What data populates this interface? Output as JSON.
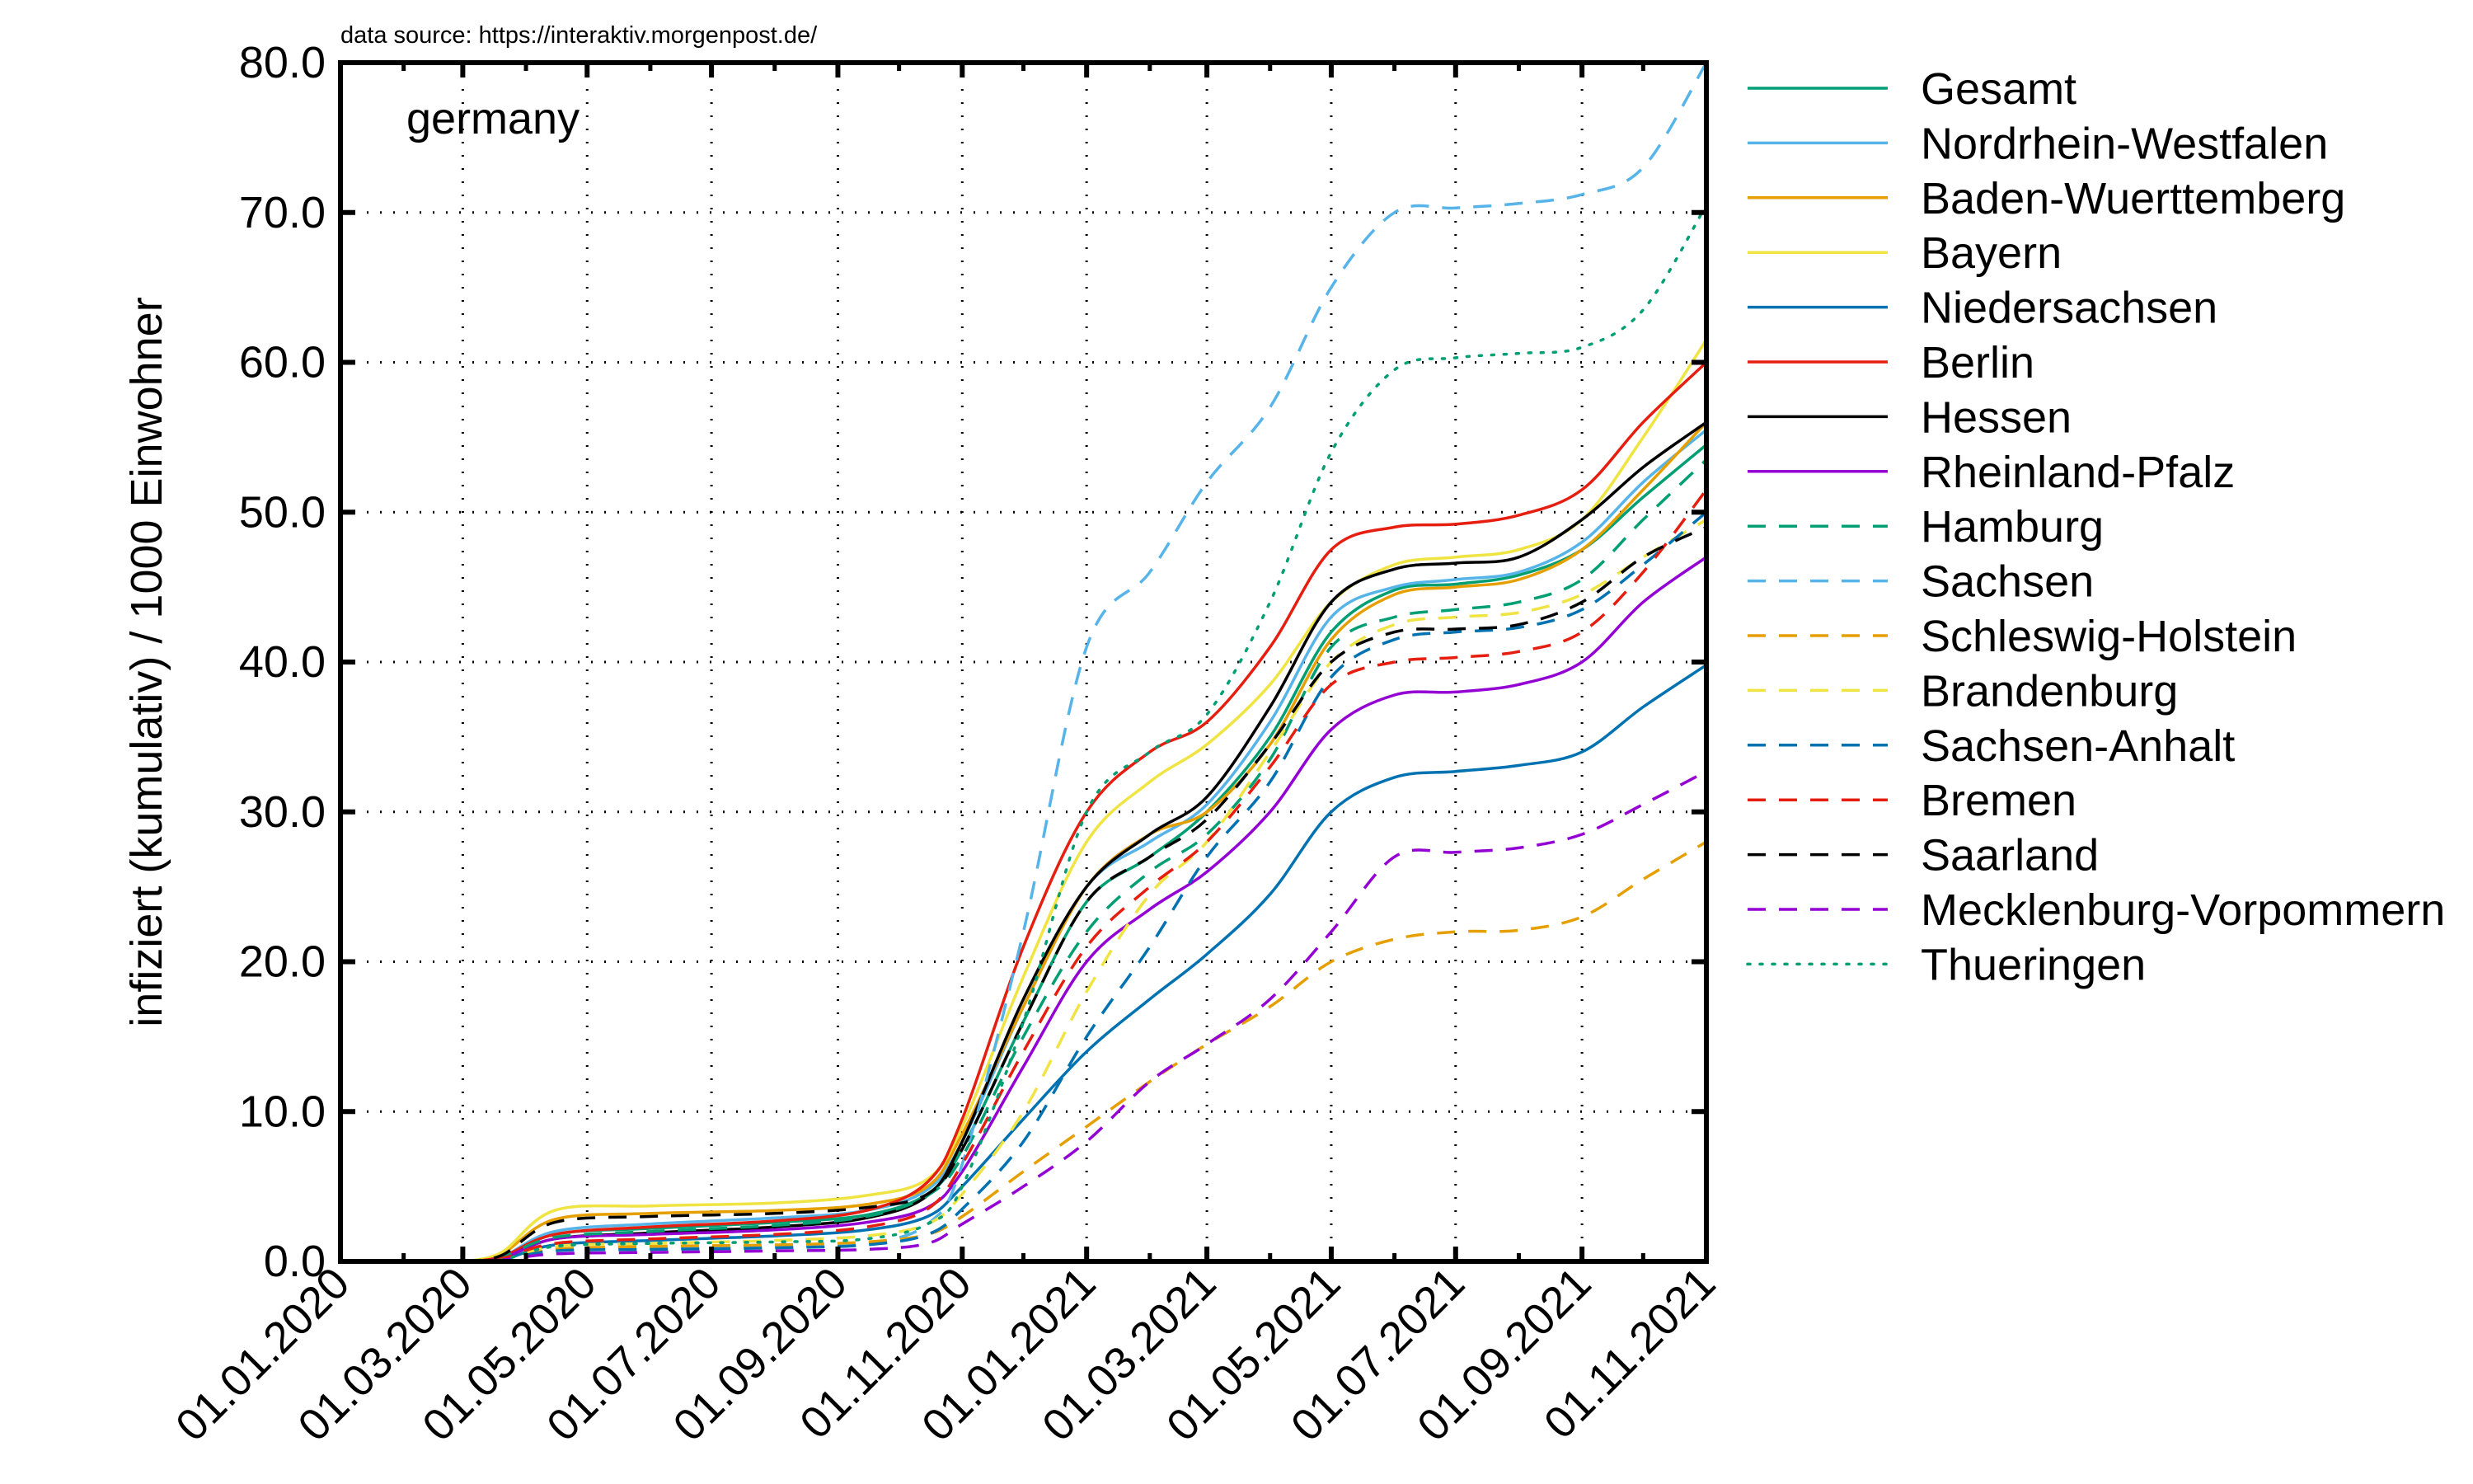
{
  "chart_data": {
    "type": "line",
    "source_note": "data source: https://interaktiv.morgenpost.de/",
    "annotation": "germany",
    "ylabel": "infiziert (kumulativ) / 1000 Einwohner",
    "xlabel": "",
    "ylim": [
      0,
      80
    ],
    "yticks": [
      "0.0",
      "10.0",
      "20.0",
      "30.0",
      "40.0",
      "50.0",
      "60.0",
      "70.0",
      "80.0"
    ],
    "x_range": [
      "2020-01-01",
      "2021-11-01"
    ],
    "xticks": [
      {
        "date": "2020-01-01",
        "label": "01.01.2020"
      },
      {
        "date": "2020-03-01",
        "label": "01.03.2020"
      },
      {
        "date": "2020-05-01",
        "label": "01.05.2020"
      },
      {
        "date": "2020-07-01",
        "label": "01.07.2020"
      },
      {
        "date": "2020-09-01",
        "label": "01.09.2020"
      },
      {
        "date": "2020-11-01",
        "label": "01.11.2020"
      },
      {
        "date": "2021-01-01",
        "label": "01.01.2021"
      },
      {
        "date": "2021-03-01",
        "label": "01.03.2021"
      },
      {
        "date": "2021-05-01",
        "label": "01.05.2021"
      },
      {
        "date": "2021-07-01",
        "label": "01.07.2021"
      },
      {
        "date": "2021-09-01",
        "label": "01.09.2021"
      },
      {
        "date": "2021-11-01",
        "label": "01.11.2021"
      }
    ],
    "grid": true,
    "legend_position": "right",
    "x": [
      "2020-03-01",
      "2020-03-20",
      "2020-04-15",
      "2020-06-01",
      "2020-08-01",
      "2020-09-15",
      "2020-10-15",
      "2020-11-01",
      "2020-12-01",
      "2021-01-01",
      "2021-02-01",
      "2021-03-01",
      "2021-04-01",
      "2021-05-01",
      "2021-06-01",
      "2021-07-01",
      "2021-08-01",
      "2021-09-01",
      "2021-10-01",
      "2021-11-01"
    ],
    "series": [
      {
        "name": "Gesamt",
        "color": "#009e73",
        "dash": "solid",
        "values": [
          0,
          0.2,
          1.8,
          2.2,
          2.6,
          3.1,
          4.5,
          7.5,
          16,
          24,
          27,
          30,
          35,
          42,
          44.8,
          45.2,
          45.8,
          47.5,
          51,
          54.5
        ]
      },
      {
        "name": "Nordrhein-Westfalen",
        "color": "#56b4e9",
        "dash": "solid",
        "values": [
          0,
          0.3,
          2.0,
          2.5,
          2.9,
          3.4,
          4.8,
          8,
          17,
          25,
          28,
          30.5,
          36,
          43,
          45,
          45.5,
          46,
          48,
          52,
          55.5
        ]
      },
      {
        "name": "Baden-Wuerttemberg",
        "color": "#e69f00",
        "dash": "solid",
        "values": [
          0,
          0.5,
          2.8,
          3.2,
          3.4,
          3.8,
          5,
          8.5,
          17,
          25,
          28.5,
          30,
          34.5,
          41.5,
          44.5,
          45,
          45.5,
          47.5,
          51.5,
          56
        ]
      },
      {
        "name": "Bayern",
        "color": "#f0e442",
        "dash": "solid",
        "values": [
          0,
          0.6,
          3.4,
          3.7,
          3.9,
          4.4,
          5.5,
          9,
          19,
          28,
          32,
          34.5,
          38.5,
          44,
          46.5,
          47,
          47.5,
          49.5,
          55,
          61.5
        ]
      },
      {
        "name": "Niedersachsen",
        "color": "#0072b2",
        "dash": "solid",
        "values": [
          0,
          0.1,
          1.1,
          1.4,
          1.7,
          2.1,
          3,
          5,
          9.5,
          14,
          17.5,
          20.5,
          24.5,
          30,
          32.3,
          32.7,
          33.1,
          34,
          37,
          39.8
        ]
      },
      {
        "name": "Berlin",
        "color": "#e51e10",
        "dash": "solid",
        "values": [
          0,
          0.3,
          1.8,
          2.3,
          2.7,
          3.4,
          5.3,
          9.5,
          21,
          30,
          34,
          36,
          41,
          47.5,
          49,
          49.2,
          49.8,
          51.5,
          56,
          60
        ]
      },
      {
        "name": "Hessen",
        "color": "#000000",
        "dash": "solid",
        "values": [
          0,
          0.2,
          1.5,
          1.9,
          2.3,
          2.9,
          4.4,
          8,
          17.5,
          25,
          28.5,
          31,
          37,
          44,
          46.2,
          46.6,
          47,
          49.5,
          53,
          56
        ]
      },
      {
        "name": "Rheinland-Pfalz",
        "color": "#9400d3",
        "dash": "solid",
        "values": [
          0,
          0.2,
          1.5,
          1.8,
          2.1,
          2.6,
          3.6,
          6,
          13,
          20,
          23.5,
          26,
          30,
          35.5,
          37.8,
          38,
          38.5,
          40,
          44,
          47
        ]
      },
      {
        "name": "Hamburg",
        "color": "#009e73",
        "dash": "dashed",
        "values": [
          0,
          0.3,
          1.6,
          2.0,
          2.4,
          3.0,
          4.4,
          7,
          15,
          22,
          26,
          28.5,
          33.5,
          41,
          43,
          43.5,
          44,
          45.5,
          49.5,
          53.5
        ]
      },
      {
        "name": "Sachsen",
        "color": "#56b4e9",
        "dash": "dashed",
        "values": [
          0,
          0.1,
          0.8,
          0.9,
          1.0,
          1.2,
          2.5,
          6.5,
          22,
          41,
          46,
          52,
          57,
          65,
          70,
          70.3,
          70.6,
          71.2,
          73,
          80
        ]
      },
      {
        "name": "Schleswig-Holstein",
        "color": "#e69f00",
        "dash": "dashed",
        "values": [
          0,
          0.1,
          0.8,
          1.0,
          1.1,
          1.3,
          1.8,
          3,
          6,
          9,
          12,
          14.5,
          17,
          20,
          21.5,
          22,
          22.1,
          23,
          25.5,
          28
        ]
      },
      {
        "name": "Brandenburg",
        "color": "#f0e442",
        "dash": "dashed",
        "values": [
          0,
          0.1,
          1.0,
          1.2,
          1.4,
          1.7,
          2.5,
          4.5,
          10,
          18,
          24.5,
          28,
          34,
          40,
          42.5,
          43,
          43.3,
          44.5,
          47,
          49.5
        ]
      },
      {
        "name": "Sachsen-Anhalt",
        "color": "#0072b2",
        "dash": "dashed",
        "values": [
          0,
          0.1,
          0.7,
          0.8,
          0.9,
          1.1,
          1.8,
          3.5,
          8,
          15,
          21,
          27,
          32,
          39,
          41.5,
          42,
          42.3,
          43.5,
          46.5,
          50
        ]
      },
      {
        "name": "Bremen",
        "color": "#e51e10",
        "dash": "dashed",
        "values": [
          0,
          0.2,
          1.2,
          1.5,
          1.8,
          2.3,
          3.5,
          6.5,
          14,
          21,
          25,
          28,
          33,
          38.5,
          40,
          40.3,
          40.7,
          42,
          46,
          51.5
        ]
      },
      {
        "name": "Saarland",
        "color": "#000000",
        "dash": "dashed",
        "values": [
          0,
          0.4,
          2.6,
          3.0,
          3.2,
          3.6,
          4.5,
          7.5,
          16,
          24,
          27,
          29.5,
          34.5,
          40,
          42,
          42.2,
          42.5,
          44,
          47,
          49
        ]
      },
      {
        "name": "Mecklenburg-Vorpommern",
        "color": "#9400d3",
        "dash": "dashed",
        "values": [
          0,
          0.1,
          0.5,
          0.6,
          0.7,
          0.8,
          1.2,
          2.5,
          5,
          8,
          12,
          14.5,
          17.5,
          22,
          27,
          27.3,
          27.6,
          28.5,
          30.5,
          32.7
        ]
      },
      {
        "name": "Thueringen",
        "color": "#009e73",
        "dash": "dotted",
        "values": [
          0,
          0.1,
          1.0,
          1.2,
          1.3,
          1.5,
          2.5,
          5,
          16,
          30,
          34,
          36.5,
          44,
          54,
          59.5,
          60.3,
          60.6,
          61,
          63.5,
          70.5
        ]
      }
    ]
  }
}
